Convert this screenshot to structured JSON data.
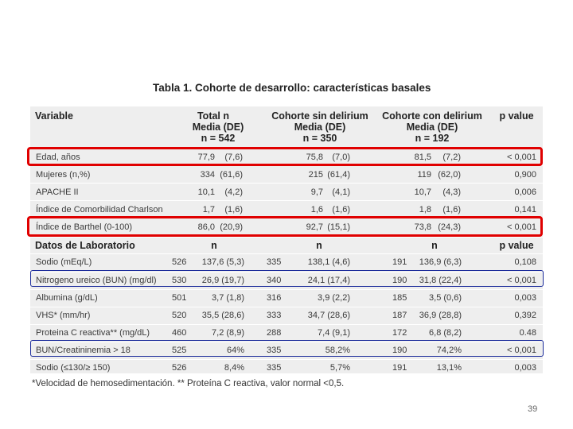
{
  "title": "Tabla 1. Cohorte de desarrollo: características basales",
  "header": {
    "variable": "Variable",
    "total": [
      "Total n",
      "Media (DE)",
      "n = 542"
    ],
    "sin": [
      "Cohorte sin delirium",
      "Media (DE)",
      "n = 350"
    ],
    "con": [
      "Cohorte con delirium",
      "Media (DE)",
      "n = 192"
    ],
    "p": "p value"
  },
  "rows1": [
    {
      "label": "Edad, años",
      "t1": "77,9",
      "t2": "(7,6)",
      "s1": "75,8",
      "s2": "(7,0)",
      "c1": "81,5",
      "c2": "(7,2)",
      "p": "< 0,001"
    },
    {
      "label": "Mujeres (n,%)",
      "t1": "334",
      "t2": "(61,6)",
      "s1": "215",
      "s2": "(61,4)",
      "c1": "119",
      "c2": "(62,0)",
      "p": "0,900"
    },
    {
      "label": "APACHE II",
      "t1": "10,1",
      "t2": "(4,2)",
      "s1": "9,7",
      "s2": "(4,1)",
      "c1": "10,7",
      "c2": "(4,3)",
      "p": "0,006"
    },
    {
      "label": "Índice de Comorbilidad Charlson",
      "t1": "1,7",
      "t2": "(1,6)",
      "s1": "1,6",
      "s2": "(1,6)",
      "c1": "1,8",
      "c2": "(1,6)",
      "p": "0,141"
    },
    {
      "label": "Índice de Barthel (0-100)",
      "t1": "86,0",
      "t2": "(20,9)",
      "s1": "92,7",
      "s2": "(15,1)",
      "c1": "73,8",
      "c2": "(24,3)",
      "p": "< 0,001"
    }
  ],
  "lab_header": {
    "label": "Datos de Laboratorio",
    "n1": "n",
    "n2": "n",
    "n3": "n",
    "p": "p value"
  },
  "rows2": [
    {
      "label": "Sodio (mEq/L)",
      "n1": "526",
      "v1": "137,6 (5,3)",
      "n2": "335",
      "v2": "138,1 (4,6)",
      "n3": "191",
      "v3": "136,9 (6,3)",
      "p": "0,108"
    },
    {
      "label": "Nitrogeno ureico (BUN) (mg/dl)",
      "n1": "530",
      "v1": "26,9 (19,7)",
      "n2": "340",
      "v2": "24,1 (17,4)",
      "n3": "190",
      "v3": "31,8 (22,4)",
      "p": "< 0,001"
    },
    {
      "label": "Albumina (g/dL)",
      "n1": "501",
      "v1": "3,7 (1,8)",
      "n2": "316",
      "v2": "3,9 (2,2)",
      "n3": "185",
      "v3": "3,5 (0,6)",
      "p": "0,003"
    },
    {
      "label": "VHS* (mm/hr)",
      "n1": "520",
      "v1": "35,5 (28,6)",
      "n2": "333",
      "v2": "34,7 (28,6)",
      "n3": "187",
      "v3": "36,9 (28,8)",
      "p": "0,392"
    },
    {
      "label": "Proteina C reactiva** (mg/dL)",
      "n1": "460",
      "v1": "7,2 (8,9)",
      "n2": "288",
      "v2": "7,4 (9,1)",
      "n3": "172",
      "v3": "6,8 (8,2)",
      "p": "0.48"
    },
    {
      "label": "BUN/Creatininemia > 18",
      "n1": "525",
      "v1": "64%",
      "n2": "335",
      "v2": "58,2%",
      "n3": "190",
      "v3": "74,2%",
      "p": "< 0,001"
    },
    {
      "label": "Sodio (≤130/≥ 150)",
      "n1": "526",
      "v1": "8,4%",
      "n2": "335",
      "v2": "5,7%",
      "n3": "191",
      "v3": "13,1%",
      "p": "0,003"
    }
  ],
  "footnote": "*Velocidad de hemosedimentación. ** Proteína C reactiva, valor normal <0,5.",
  "page_number": "39",
  "colors": {
    "highlight_red": "#e00000",
    "highlight_blue": "#1a2a9a",
    "table_bg": "#eeeeee"
  }
}
